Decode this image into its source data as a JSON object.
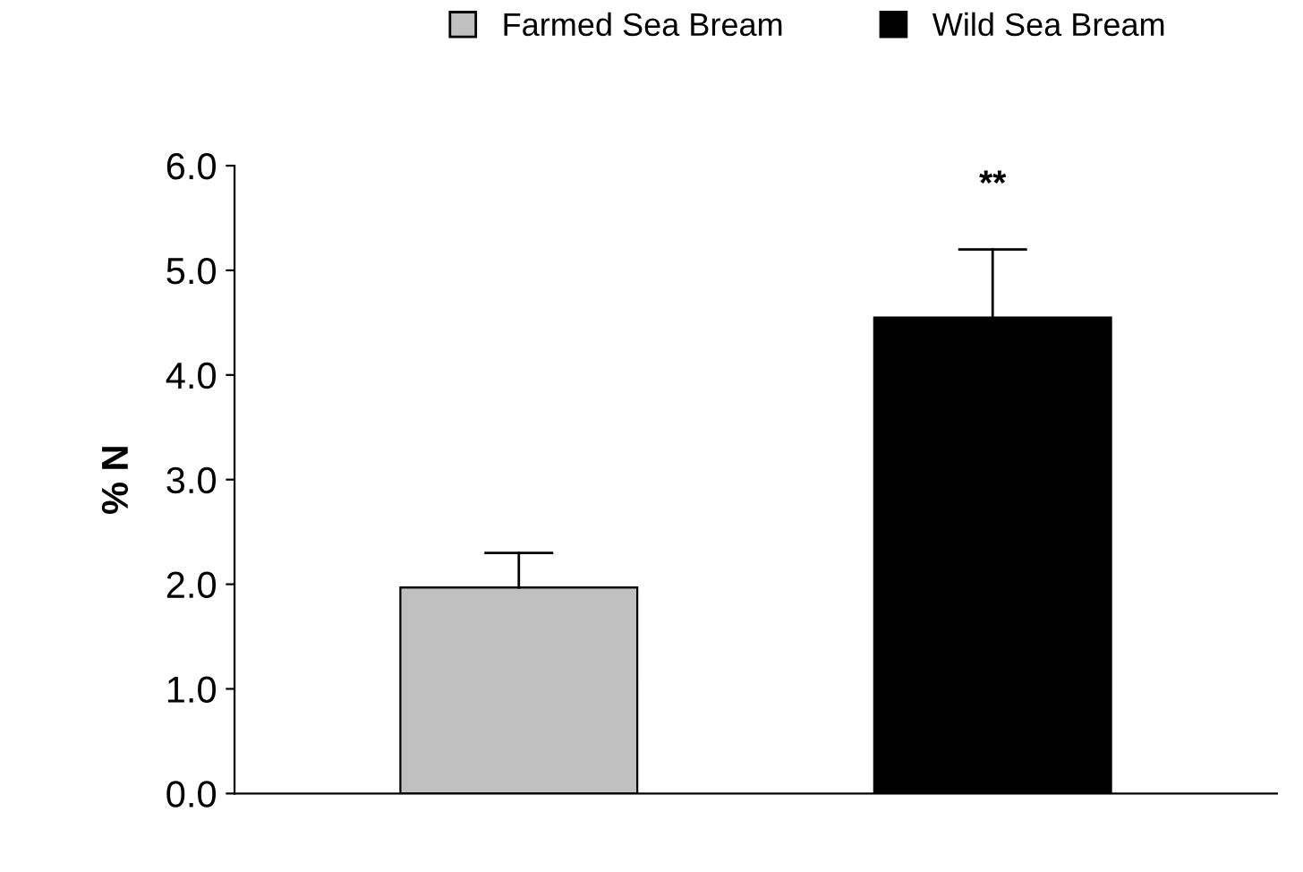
{
  "chart_data": {
    "type": "bar",
    "stacked": true,
    "categories": [
      null,
      null
    ],
    "series": [
      {
        "name": "Farmed Sea Bream",
        "color": "#c0c0c0",
        "values": [
          1.97,
          null
        ],
        "errors": [
          [
            1.97,
            2.3
          ],
          null
        ]
      },
      {
        "name": "Wild Sea Bream",
        "color": "#000000",
        "values": [
          null,
          4.55
        ],
        "errors": [
          null,
          [
            4.55,
            5.2
          ]
        ]
      }
    ],
    "ylabel": "% N",
    "ylim": [
      0,
      6
    ],
    "yticks": [
      {
        "value": 0,
        "label": "0.0"
      },
      {
        "value": 1,
        "label": "1.0"
      },
      {
        "value": 2,
        "label": "2.0"
      },
      {
        "value": 3,
        "label": "3.0"
      },
      {
        "value": 4,
        "label": "4.0"
      },
      {
        "value": 5,
        "label": "5.0"
      },
      {
        "value": 6,
        "label": "6.0"
      }
    ],
    "annotations": [
      "**"
    ],
    "grid": false,
    "legend": "top"
  }
}
